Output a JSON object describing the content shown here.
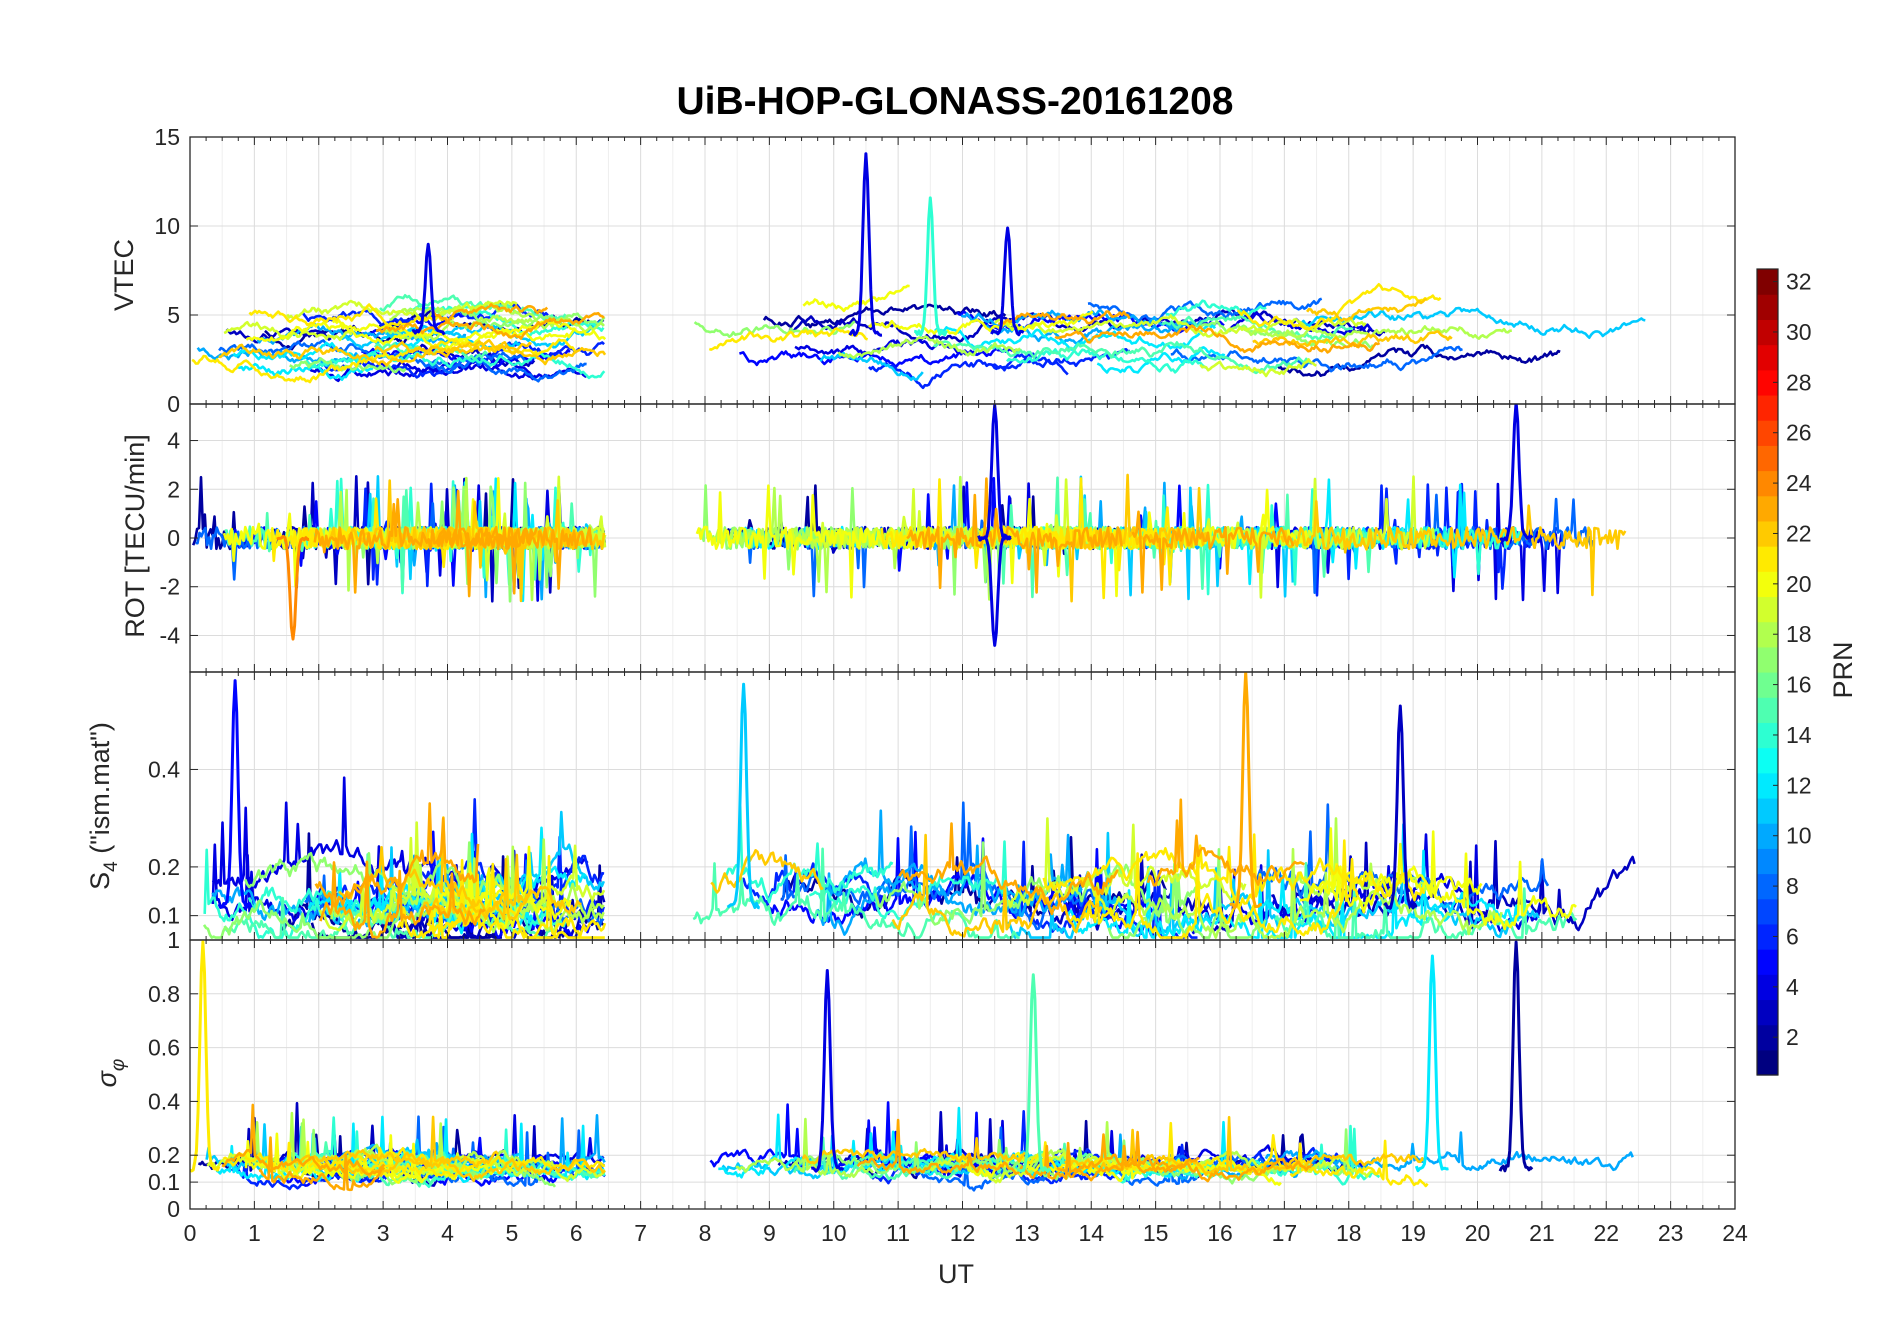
{
  "chart_data": {
    "type": "line",
    "title": "UiB-HOP-GLONASS-20161208",
    "xlabel": "UT",
    "xlim": [
      0,
      24
    ],
    "xticks": [
      0,
      1,
      2,
      3,
      4,
      5,
      6,
      7,
      8,
      9,
      10,
      11,
      12,
      13,
      14,
      15,
      16,
      17,
      18,
      19,
      20,
      21,
      22,
      23,
      24
    ],
    "grid": true,
    "data_gap_ut": [
      6.5,
      7.8
    ],
    "panels": [
      {
        "id": "vtec",
        "ylabel": "VTEC",
        "ylim": [
          0,
          15
        ],
        "yticks": [
          0,
          5,
          10,
          15
        ],
        "peaks": [
          {
            "prn": 4,
            "ut": 10.5,
            "value": 14
          },
          {
            "prn": 14,
            "ut": 11.5,
            "value": 11.5
          },
          {
            "prn": 4,
            "ut": 3.7,
            "value": 9
          },
          {
            "prn": 4,
            "ut": 12.7,
            "value": 10
          }
        ]
      },
      {
        "id": "rot",
        "ylabel": "ROT [TECU/min]",
        "ylim": [
          -5.5,
          5.5
        ],
        "yticks": [
          -4,
          -2,
          0,
          2,
          4
        ],
        "peaks": [
          {
            "prn": 4,
            "ut": 12.5,
            "value": 5.5
          },
          {
            "prn": 4,
            "ut": 12.5,
            "value": -4.5
          },
          {
            "prn": 24,
            "ut": 1.6,
            "value": -4.2
          },
          {
            "prn": 4,
            "ut": 20.6,
            "value": 5.5
          }
        ]
      },
      {
        "id": "s4",
        "ylabel": "S_4 (\"ism.mat\")",
        "ylabel_main": "S",
        "ylabel_sub": "4",
        "ylabel_rest": " (\"ism.mat\")",
        "ylim": [
          0.05,
          0.6
        ],
        "yticks": [
          0.1,
          0.2,
          0.4
        ],
        "peaks": [
          {
            "prn": 23,
            "ut": 16.4,
            "value": 0.6
          },
          {
            "prn": 11,
            "ut": 8.6,
            "value": 0.58
          },
          {
            "prn": 3,
            "ut": 18.8,
            "value": 0.53
          },
          {
            "prn": 5,
            "ut": 0.7,
            "value": 0.58
          }
        ]
      },
      {
        "id": "sigma_phi",
        "ylabel": "σ_φ",
        "ylabel_main": "σ",
        "ylabel_sub": "φ",
        "ylim": [
          0,
          1
        ],
        "yticks": [
          0,
          0.1,
          0.2,
          0.4,
          0.6,
          0.8,
          1
        ],
        "peaks": [
          {
            "prn": 21,
            "ut": 0.2,
            "value": 1.0
          },
          {
            "prn": 2,
            "ut": 20.6,
            "value": 1.0
          },
          {
            "prn": 12,
            "ut": 19.3,
            "value": 0.95
          },
          {
            "prn": 4,
            "ut": 9.9,
            "value": 0.88
          },
          {
            "prn": 15,
            "ut": 13.1,
            "value": 0.88
          }
        ]
      }
    ],
    "colorbar": {
      "label": "PRN",
      "range": [
        1,
        32
      ],
      "ticks": [
        2,
        4,
        6,
        8,
        10,
        12,
        14,
        16,
        18,
        20,
        22,
        24,
        26,
        28,
        30,
        32
      ],
      "colormap": "jet",
      "location": "right"
    }
  },
  "colors": {
    "axis": "#262626",
    "grid": "#dfdfdf",
    "background": "#ffffff"
  }
}
